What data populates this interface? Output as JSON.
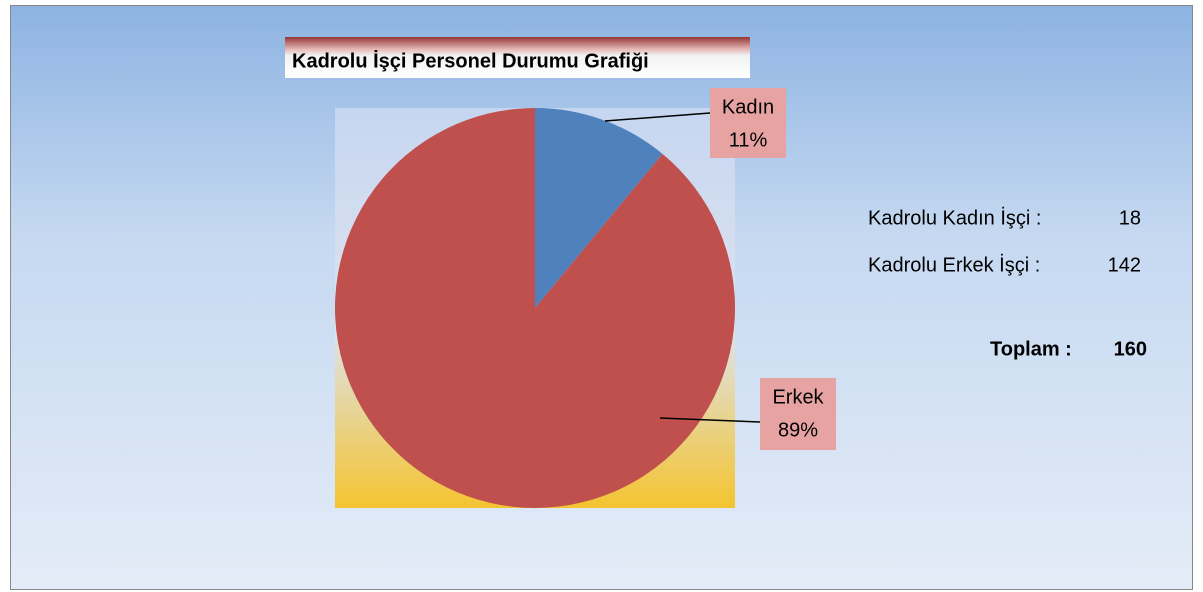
{
  "chart_data": {
    "type": "pie",
    "title": "Kadrolu İşçi Personel Durumu Grafiği",
    "categories": [
      "Kadın",
      "Erkek"
    ],
    "values": [
      11,
      89
    ],
    "value_labels": [
      "11%",
      "89%"
    ],
    "colors": [
      "#4f81bd",
      "#c0504d"
    ],
    "annotations": [
      {
        "text": "Kadrolu Kadın İşçi :",
        "value": 18
      },
      {
        "text": "Kadrolu Erkek İşçi :",
        "value": 142
      },
      {
        "text": "Toplam :",
        "value": 160
      }
    ]
  }
}
